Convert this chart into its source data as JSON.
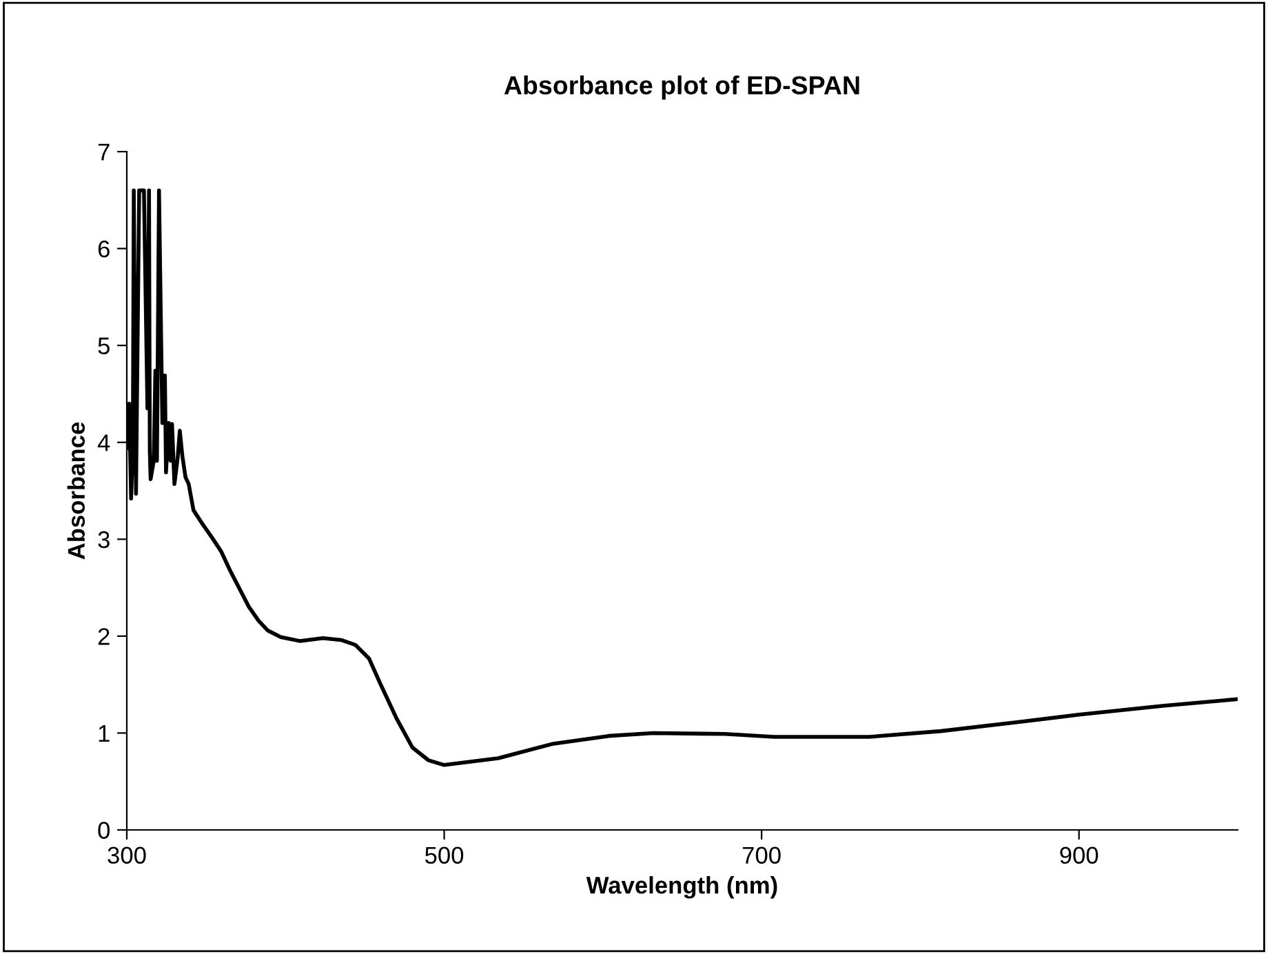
{
  "chart_data": {
    "type": "line",
    "title": "Absorbance plot of ED-SPAN",
    "xlabel": "Wavelength (nm)",
    "ylabel": "Absorbance",
    "xlim": [
      300,
      1000
    ],
    "xticks": [
      300,
      500,
      700,
      900
    ],
    "ylim": [
      0,
      7
    ],
    "yticks": [
      0,
      1,
      2,
      3,
      4,
      5,
      6,
      7
    ],
    "grid": false,
    "legend": false,
    "marker": "none",
    "line_style": "solid",
    "series": [
      {
        "color": "#000000",
        "x": [
          300,
          301.5,
          302.7,
          303.8,
          304.4,
          305.8,
          307.8,
          310.8,
          313,
          314,
          314.5,
          315,
          317,
          318,
          319,
          320.3,
          322.4,
          324,
          324.7,
          326.4,
          327.6,
          328.5,
          330,
          332,
          333.4,
          335,
          337,
          339,
          342,
          348,
          354,
          359.6,
          365,
          371,
          377,
          383,
          388.7,
          397,
          409,
          423.6,
          435,
          444,
          452.6,
          460,
          470,
          480,
          490,
          500,
          534,
          568.8,
          603.7,
          631.6,
          677,
          708,
          767.7,
          813,
          865.4,
          900,
          952.7,
          1000
        ],
        "values": [
          3.94,
          4.4,
          3.42,
          3.91,
          6.6,
          3.47,
          6.6,
          6.6,
          4.35,
          6.6,
          3.91,
          3.62,
          3.81,
          4.74,
          3.81,
          6.6,
          4.2,
          4.69,
          3.69,
          4.2,
          3.81,
          4.19,
          3.57,
          3.83,
          4.12,
          3.86,
          3.64,
          3.57,
          3.3,
          3.15,
          3.01,
          2.87,
          2.68,
          2.49,
          2.3,
          2.16,
          2.06,
          1.99,
          1.95,
          1.98,
          1.96,
          1.91,
          1.77,
          1.5,
          1.15,
          0.85,
          0.72,
          0.67,
          0.74,
          0.89,
          0.97,
          1.0,
          0.99,
          0.96,
          0.96,
          1.02,
          1.12,
          1.19,
          1.28,
          1.35
        ]
      }
    ]
  }
}
